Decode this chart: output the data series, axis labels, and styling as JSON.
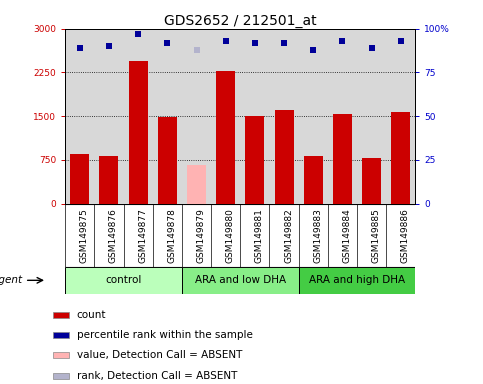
{
  "title": "GDS2652 / 212501_at",
  "samples": [
    "GSM149875",
    "GSM149876",
    "GSM149877",
    "GSM149878",
    "GSM149879",
    "GSM149880",
    "GSM149881",
    "GSM149882",
    "GSM149883",
    "GSM149884",
    "GSM149885",
    "GSM149886"
  ],
  "counts": [
    850,
    820,
    2450,
    1480,
    null,
    2280,
    1510,
    1610,
    820,
    1540,
    780,
    1580
  ],
  "absent_count": [
    null,
    null,
    null,
    null,
    660,
    null,
    null,
    null,
    null,
    null,
    null,
    null
  ],
  "percentile_ranks": [
    89,
    90,
    97,
    92,
    null,
    93,
    92,
    92,
    88,
    93,
    89,
    93
  ],
  "absent_rank": [
    null,
    null,
    null,
    null,
    88,
    null,
    null,
    null,
    null,
    null,
    null,
    null
  ],
  "ylim_left": [
    0,
    3000
  ],
  "ylim_right": [
    0,
    100
  ],
  "yticks_left": [
    0,
    750,
    1500,
    2250,
    3000
  ],
  "yticks_left_labels": [
    "0",
    "750",
    "1500",
    "2250",
    "3000"
  ],
  "yticks_right": [
    0,
    25,
    50,
    75,
    100
  ],
  "yticks_right_labels": [
    "0",
    "25",
    "50",
    "75",
    "100%"
  ],
  "bar_color_present": "#cc0000",
  "bar_color_absent": "#ffb3b3",
  "dot_color_present": "#000099",
  "dot_color_absent": "#b3b3cc",
  "groups": [
    {
      "label": "control",
      "start": 0,
      "end": 3,
      "color": "#bbffbb"
    },
    {
      "label": "ARA and low DHA",
      "start": 4,
      "end": 7,
      "color": "#88ee88"
    },
    {
      "label": "ARA and high DHA",
      "start": 8,
      "end": 11,
      "color": "#44cc44"
    }
  ],
  "legend_items": [
    {
      "label": "count",
      "color": "#cc0000"
    },
    {
      "label": "percentile rank within the sample",
      "color": "#000099"
    },
    {
      "label": "value, Detection Call = ABSENT",
      "color": "#ffb3b3"
    },
    {
      "label": "rank, Detection Call = ABSENT",
      "color": "#b3b3cc"
    }
  ],
  "agent_label": "agent",
  "background_color": "#ffffff",
  "plot_bg_color": "#d8d8d8",
  "label_area_color": "#d0d0d0",
  "title_fontsize": 10,
  "tick_fontsize": 6.5,
  "label_fontsize": 7.5,
  "legend_fontsize": 7.5
}
